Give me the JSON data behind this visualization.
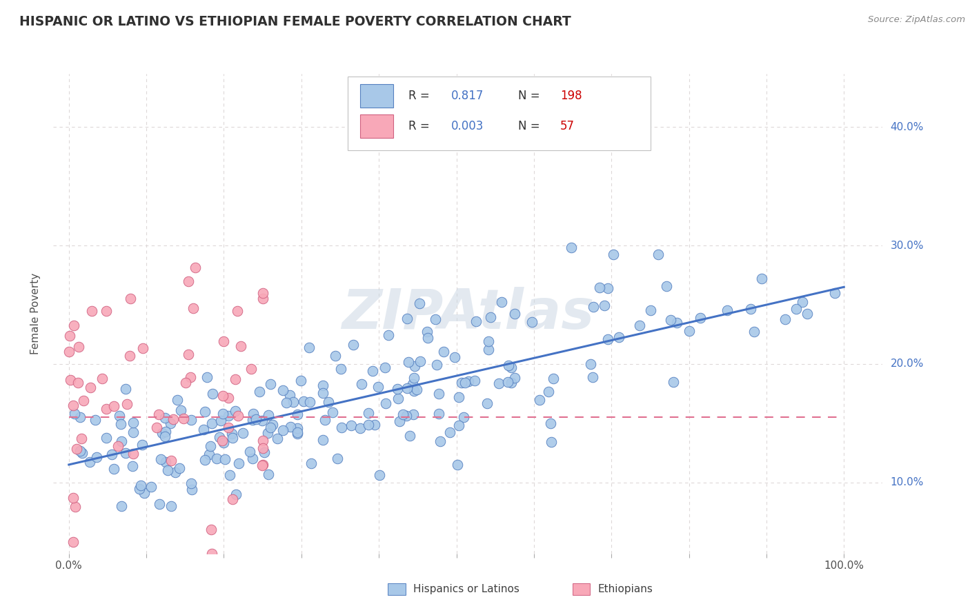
{
  "title": "HISPANIC OR LATINO VS ETHIOPIAN FEMALE POVERTY CORRELATION CHART",
  "source": "Source: ZipAtlas.com",
  "ylabel": "Female Poverty",
  "blue_scatter_color": "#a8c8e8",
  "blue_scatter_edge": "#5580c0",
  "pink_scatter_color": "#f8a8b8",
  "pink_scatter_edge": "#d06080",
  "blue_line_color": "#4472c4",
  "pink_line_color": "#e07090",
  "watermark": "ZIPAtlas",
  "background_color": "#ffffff",
  "grid_color": "#ddd8d8",
  "title_color": "#303030",
  "axis_label_color": "#505050",
  "R_value_color": "#4472c4",
  "N_value_color": "#cc0000",
  "blue_R": 0.817,
  "blue_N": 198,
  "pink_R": 0.003,
  "pink_N": 57,
  "blue_line_x": [
    0.0,
    1.0
  ],
  "blue_line_y": [
    0.115,
    0.265
  ],
  "pink_line_y": 0.155,
  "x_min": -0.02,
  "x_max": 1.05,
  "y_min": 0.04,
  "y_max": 0.445,
  "y_ticks": [
    0.1,
    0.2,
    0.3,
    0.4
  ],
  "y_tick_labels": [
    "10.0%",
    "20.0%",
    "30.0%",
    "40.0%"
  ],
  "x_ticks": [
    0.0,
    0.1,
    0.2,
    0.3,
    0.4,
    0.5,
    0.6,
    0.7,
    0.8,
    0.9,
    1.0
  ],
  "bottom_legend_labels": [
    "Hispanics or Latinos",
    "Ethiopians"
  ]
}
